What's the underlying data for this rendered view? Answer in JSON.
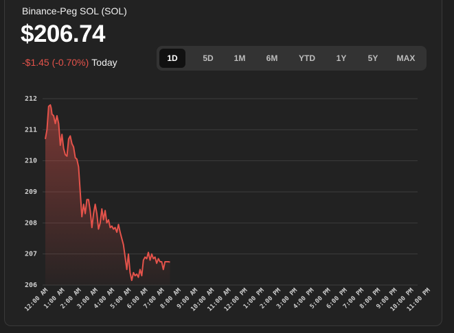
{
  "asset": {
    "name": "Binance-Peg SOL (SOL)",
    "price": "$206.74",
    "change": "-$1.45 (-0.70%)",
    "change_period": "Today"
  },
  "ranges": {
    "selected": "1D",
    "items": [
      "1D",
      "5D",
      "1M",
      "6M",
      "YTD",
      "1Y",
      "5Y",
      "MAX"
    ]
  },
  "colors": {
    "line": "#e5534b",
    "negative": "#e5534b",
    "grid": "#3d3d3d"
  },
  "chart_data": {
    "type": "area",
    "ylim": [
      206,
      212
    ],
    "yticks": [
      212,
      211,
      210,
      209,
      208,
      207,
      206
    ],
    "grid": true,
    "xticks": [
      "12:00 AM",
      "1:00 AM",
      "2:00 AM",
      "3:00 AM",
      "4:00 AM",
      "5:00 AM",
      "6:00 AM",
      "7:00 AM",
      "8:00 AM",
      "9:00 AM",
      "10:00 AM",
      "11:00 AM",
      "12:00 PM",
      "1:00 PM",
      "2:00 PM",
      "3:00 PM",
      "4:00 PM",
      "5:00 PM",
      "6:00 PM",
      "7:00 PM",
      "8:00 PM",
      "9:00 PM",
      "10:00 PM",
      "11:00 PM"
    ],
    "series": [
      {
        "hours": [
          0,
          0.1,
          0.2,
          0.3,
          0.35,
          0.4,
          0.5,
          0.6,
          0.7,
          0.8,
          0.9,
          1.0,
          1.1,
          1.2,
          1.3,
          1.4,
          1.5,
          1.6,
          1.7,
          1.8,
          1.9,
          2.0,
          2.1,
          2.2,
          2.3,
          2.4,
          2.5,
          2.6,
          2.7,
          2.8,
          2.9,
          3.0,
          3.1,
          3.2,
          3.3,
          3.4,
          3.5,
          3.6,
          3.7,
          3.8,
          3.9,
          4.0,
          4.1,
          4.2,
          4.3,
          4.4,
          4.5,
          4.6,
          4.7,
          4.8,
          4.9,
          5.0,
          5.1,
          5.2,
          5.3,
          5.4,
          5.5,
          5.6,
          5.7,
          5.8,
          5.9,
          6.0,
          6.1,
          6.2,
          6.3,
          6.4,
          6.5,
          6.6,
          6.7,
          6.8,
          6.9,
          7.0,
          7.1,
          7.2,
          7.3,
          7.4,
          7.5
        ],
        "values": [
          210.7,
          211.0,
          211.75,
          211.8,
          211.7,
          211.5,
          211.45,
          211.2,
          211.45,
          211.2,
          210.5,
          210.85,
          210.4,
          210.2,
          210.15,
          210.7,
          210.8,
          210.55,
          210.45,
          210.1,
          210.05,
          209.8,
          209.0,
          208.2,
          208.6,
          208.3,
          208.75,
          208.75,
          208.4,
          207.85,
          208.3,
          208.6,
          208.3,
          207.8,
          208.0,
          208.45,
          208.1,
          208.4,
          208.0,
          208.1,
          207.85,
          207.9,
          207.8,
          207.85,
          207.7,
          207.95,
          207.7,
          207.5,
          207.3,
          206.9,
          206.5,
          207.0,
          206.4,
          206.15,
          206.4,
          206.3,
          206.35,
          206.25,
          206.5,
          206.3,
          206.8,
          206.9,
          206.85,
          207.05,
          206.8,
          207.0,
          206.85,
          206.9,
          206.7,
          206.85,
          206.75,
          206.75,
          206.5,
          206.75,
          206.75,
          206.75,
          206.74
        ]
      }
    ]
  }
}
